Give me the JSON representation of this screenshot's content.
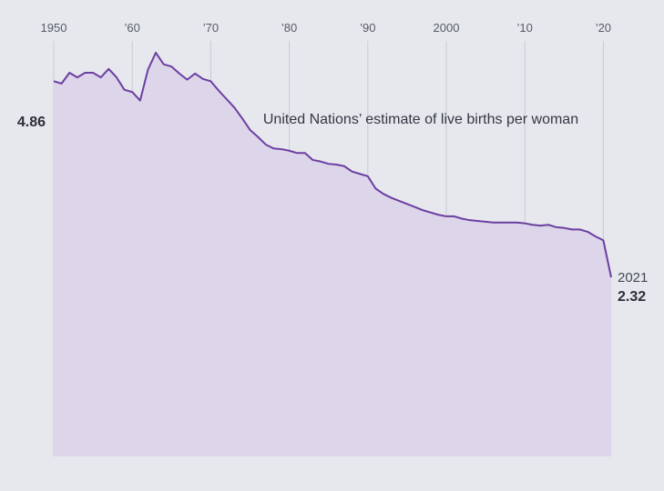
{
  "chart_data": {
    "type": "area",
    "annotation": "United Nations’ estimate of live births per woman",
    "x_tick_labels": [
      "1950",
      "’60",
      "’70",
      "’80",
      "’90",
      "2000",
      "’10",
      "’20"
    ],
    "x_tick_values": [
      1950,
      1960,
      1970,
      1980,
      1990,
      2000,
      2010,
      2020
    ],
    "start_label": {
      "value": "4.86"
    },
    "end_label": {
      "year": "2021",
      "value": "2.32"
    },
    "xlim": [
      1950,
      2021
    ],
    "ylim": [
      0,
      5.5
    ],
    "grid": "vertical",
    "colors": {
      "line": "#6b3fa0",
      "fill": "#ddd5ea",
      "grid": "#c9cbd2",
      "background": "#e6e8ee"
    },
    "series": [
      {
        "x": [
          1950,
          1951,
          1952,
          1953,
          1954,
          1955,
          1956,
          1957,
          1958,
          1959,
          1960,
          1961,
          1962,
          1963,
          1964,
          1965,
          1966,
          1967,
          1968,
          1969,
          1970,
          1971,
          1972,
          1973,
          1974,
          1975,
          1976,
          1977,
          1978,
          1979,
          1980,
          1981,
          1982,
          1983,
          1984,
          1985,
          1986,
          1987,
          1988,
          1989,
          1990,
          1991,
          1992,
          1993,
          1994,
          1995,
          1996,
          1997,
          1998,
          1999,
          2000,
          2001,
          2002,
          2003,
          2004,
          2005,
          2006,
          2007,
          2008,
          2009,
          2010,
          2011,
          2012,
          2013,
          2014,
          2015,
          2016,
          2017,
          2018,
          2019,
          2020,
          2021
        ],
        "y": [
          4.86,
          4.83,
          4.97,
          4.91,
          4.97,
          4.97,
          4.91,
          5.02,
          4.91,
          4.75,
          4.72,
          4.61,
          5.01,
          5.23,
          5.08,
          5.05,
          4.96,
          4.88,
          4.96,
          4.89,
          4.86,
          4.74,
          4.63,
          4.52,
          4.38,
          4.23,
          4.14,
          4.04,
          3.99,
          3.98,
          3.96,
          3.93,
          3.93,
          3.84,
          3.82,
          3.79,
          3.78,
          3.76,
          3.69,
          3.66,
          3.63,
          3.47,
          3.4,
          3.35,
          3.31,
          3.27,
          3.23,
          3.19,
          3.16,
          3.13,
          3.11,
          3.11,
          3.08,
          3.06,
          3.05,
          3.04,
          3.03,
          3.03,
          3.03,
          3.03,
          3.02,
          3.0,
          2.99,
          3.0,
          2.97,
          2.96,
          2.94,
          2.94,
          2.91,
          2.85,
          2.8,
          2.32
        ]
      }
    ]
  }
}
